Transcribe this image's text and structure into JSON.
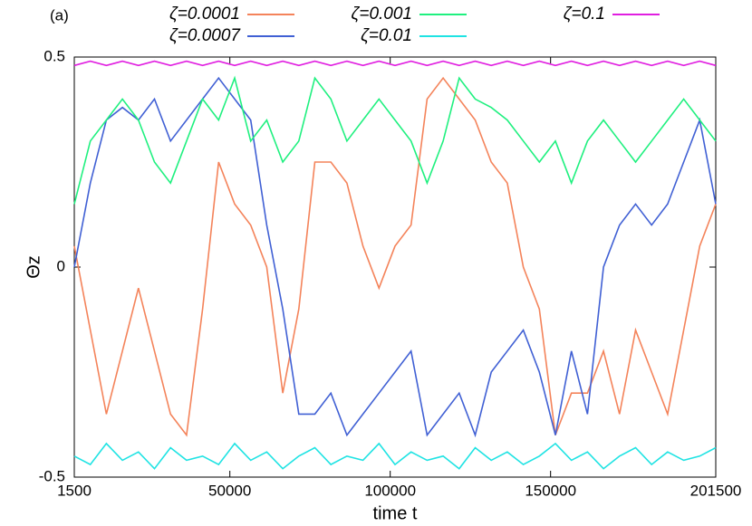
{
  "chart_data": {
    "type": "line",
    "title": "(a)",
    "xlabel": "time t",
    "ylabel": "Θz",
    "xlim": [
      1500,
      201500
    ],
    "xticks": [
      1500,
      50000,
      100000,
      150000,
      201500
    ],
    "ylim": [
      -0.5,
      0.5
    ],
    "yticks": [
      -0.5,
      0,
      0.5
    ],
    "x": [
      1500,
      6500,
      11500,
      16500,
      21500,
      26500,
      31500,
      36500,
      41500,
      46500,
      51500,
      56500,
      61500,
      66500,
      71500,
      76500,
      81500,
      86500,
      91500,
      96500,
      101500,
      106500,
      111500,
      116500,
      121500,
      126500,
      131500,
      136500,
      141500,
      146500,
      151500,
      156500,
      161500,
      166500,
      171500,
      176500,
      181500,
      186500,
      191500,
      196500,
      201500
    ],
    "series": [
      {
        "name": "ζ=0.0001",
        "color": "#f4835a",
        "values": [
          0.05,
          -0.15,
          -0.35,
          -0.2,
          -0.05,
          -0.2,
          -0.35,
          -0.4,
          -0.1,
          0.25,
          0.15,
          0.1,
          0.0,
          -0.3,
          -0.1,
          0.25,
          0.25,
          0.2,
          0.05,
          -0.05,
          0.05,
          0.1,
          0.4,
          0.45,
          0.4,
          0.35,
          0.25,
          0.2,
          0.0,
          -0.1,
          -0.4,
          -0.3,
          -0.3,
          -0.2,
          -0.35,
          -0.15,
          -0.25,
          -0.35,
          -0.15,
          0.05,
          0.15
        ]
      },
      {
        "name": "ζ=0.0007",
        "color": "#4060d4",
        "values": [
          0.0,
          0.2,
          0.35,
          0.38,
          0.35,
          0.4,
          0.3,
          0.35,
          0.4,
          0.45,
          0.4,
          0.35,
          0.1,
          -0.1,
          -0.35,
          -0.35,
          -0.3,
          -0.4,
          -0.35,
          -0.3,
          -0.25,
          -0.2,
          -0.4,
          -0.35,
          -0.3,
          -0.4,
          -0.25,
          -0.2,
          -0.15,
          -0.25,
          -0.4,
          -0.2,
          -0.35,
          0.0,
          0.1,
          0.15,
          0.1,
          0.15,
          0.25,
          0.35,
          0.15
        ]
      },
      {
        "name": "ζ=0.001",
        "color": "#1ff07f",
        "values": [
          0.15,
          0.3,
          0.35,
          0.4,
          0.35,
          0.25,
          0.2,
          0.3,
          0.4,
          0.35,
          0.45,
          0.3,
          0.35,
          0.25,
          0.3,
          0.45,
          0.4,
          0.3,
          0.35,
          0.4,
          0.35,
          0.3,
          0.2,
          0.3,
          0.45,
          0.4,
          0.38,
          0.35,
          0.3,
          0.25,
          0.3,
          0.2,
          0.3,
          0.35,
          0.3,
          0.25,
          0.3,
          0.35,
          0.4,
          0.35,
          0.3
        ]
      },
      {
        "name": "ζ=0.01",
        "color": "#1fe3e3",
        "values": [
          -0.45,
          -0.47,
          -0.42,
          -0.46,
          -0.44,
          -0.48,
          -0.43,
          -0.46,
          -0.45,
          -0.47,
          -0.42,
          -0.46,
          -0.44,
          -0.48,
          -0.45,
          -0.43,
          -0.47,
          -0.45,
          -0.46,
          -0.42,
          -0.47,
          -0.44,
          -0.46,
          -0.45,
          -0.48,
          -0.43,
          -0.46,
          -0.44,
          -0.47,
          -0.45,
          -0.42,
          -0.46,
          -0.44,
          -0.48,
          -0.45,
          -0.43,
          -0.47,
          -0.44,
          -0.46,
          -0.45,
          -0.43
        ]
      },
      {
        "name": "ζ=0.1",
        "color": "#e01ee0",
        "values": [
          0.48,
          0.49,
          0.48,
          0.49,
          0.48,
          0.49,
          0.48,
          0.49,
          0.48,
          0.49,
          0.48,
          0.49,
          0.48,
          0.49,
          0.48,
          0.49,
          0.48,
          0.49,
          0.48,
          0.49,
          0.48,
          0.49,
          0.48,
          0.49,
          0.48,
          0.49,
          0.48,
          0.49,
          0.48,
          0.49,
          0.48,
          0.49,
          0.48,
          0.49,
          0.48,
          0.49,
          0.48,
          0.49,
          0.48,
          0.49,
          0.48
        ]
      }
    ]
  }
}
